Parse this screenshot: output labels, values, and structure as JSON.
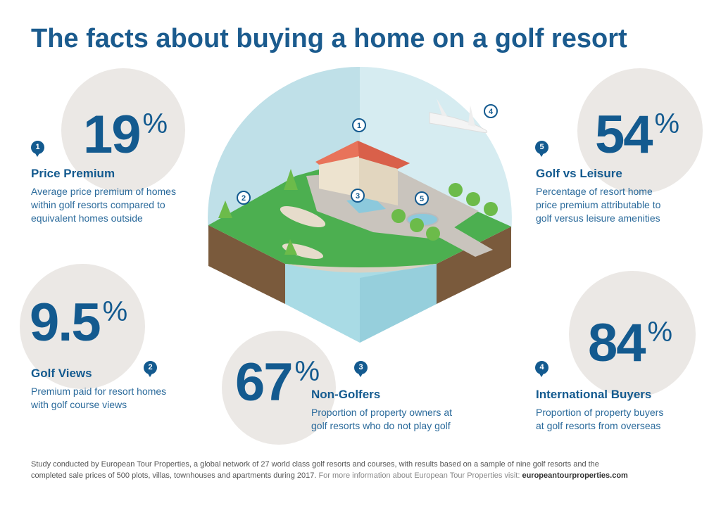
{
  "title": "The facts about buying a home on a golf resort",
  "stats": [
    {
      "number": "1",
      "value": "19",
      "unit": "%",
      "heading": "Price Premium",
      "description": [
        "Average price premium of homes",
        "within golf resorts compared to",
        "equivalent homes outside"
      ]
    },
    {
      "number": "2",
      "value": "9.5",
      "unit": "%",
      "heading": "Golf Views",
      "description": [
        "Premium paid for resort homes",
        "with golf course views"
      ]
    },
    {
      "number": "3",
      "value": "67",
      "unit": "%",
      "heading": "Non-Golfers",
      "description": [
        "Proportion of property owners at",
        "golf resorts who do not play golf"
      ]
    },
    {
      "number": "4",
      "value": "84",
      "unit": "%",
      "heading": "International Buyers",
      "description": [
        "Proportion of property buyers",
        "at golf resorts from overseas"
      ]
    },
    {
      "number": "5",
      "value": "54",
      "unit": "%",
      "heading": "Golf vs Leisure",
      "description": [
        "Percentage of resort home",
        "price premium attributable to",
        "golf versus leisure amenities"
      ]
    }
  ],
  "illustration": {
    "markers": [
      "1",
      "2",
      "3",
      "4",
      "5"
    ]
  },
  "footer": {
    "line1": "Study conducted by European Tour Properties, a global network of 27 world class golf resorts and courses, with results based on a sample of nine golf resorts and the",
    "line2": "completed sale prices of 500 plots, villas, townhouses and apartments during 2017.",
    "more_info": " For more information about European Tour Properties visit: ",
    "link": "europeantourproperties.com"
  },
  "colors": {
    "brand_blue": "#135a8f",
    "circle_gray": "#ebe8e5",
    "sky": "#bfe0e8",
    "grass": "#4caf50",
    "earth": "#7a5a3c",
    "roof": "#e8735a"
  }
}
